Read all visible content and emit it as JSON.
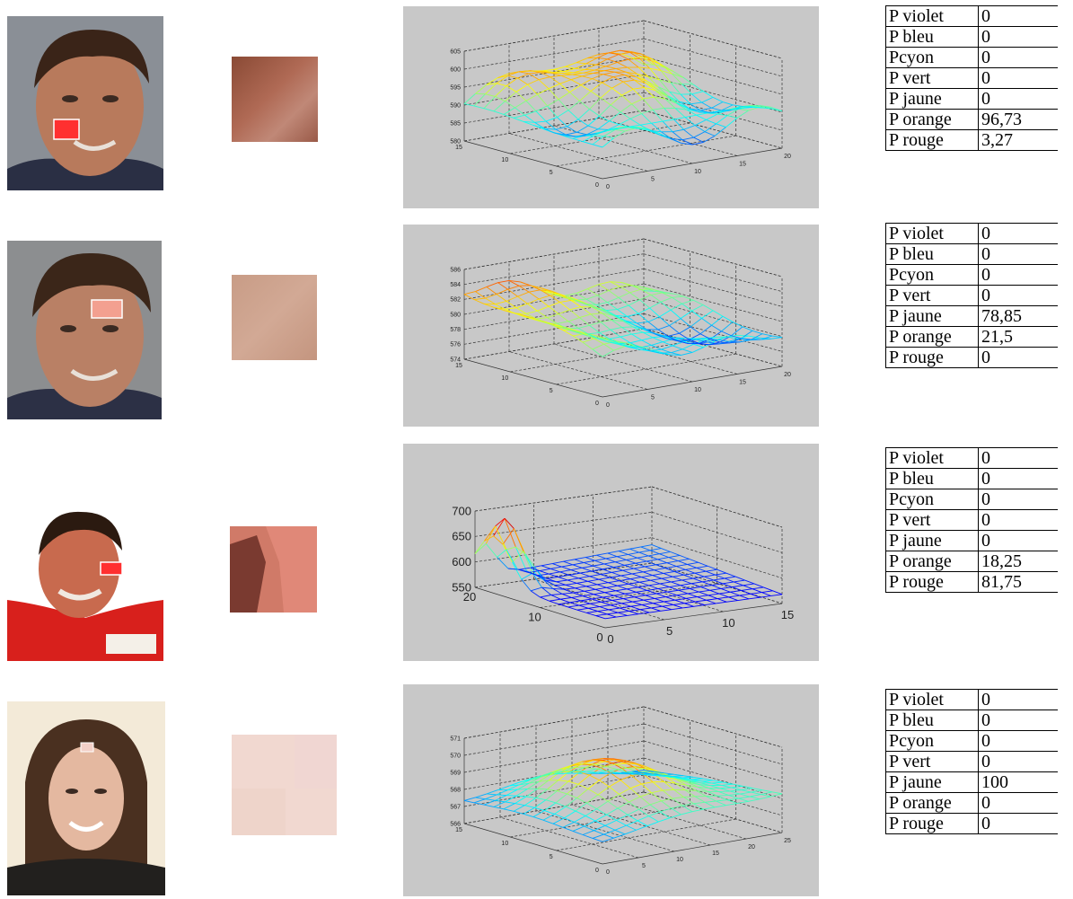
{
  "rows": [
    {
      "table": [
        [
          "P violet",
          "0"
        ],
        [
          "P bleu",
          "0"
        ],
        [
          "Pcyon",
          "0"
        ],
        [
          "P vert",
          "0"
        ],
        [
          "P jaune",
          "0"
        ],
        [
          "P orange",
          "96,73"
        ],
        [
          "P rouge",
          "3,27"
        ]
      ],
      "chart_data": {
        "type": "surface",
        "z_ticks": [
          "605",
          "600",
          "595",
          "590",
          "585",
          "580"
        ],
        "y_ticks": [
          "15",
          "10",
          "5",
          "0"
        ],
        "x_ticks": [
          "0",
          "5",
          "10",
          "15",
          "20"
        ],
        "zlim": [
          580,
          605
        ],
        "ylim": [
          0,
          15
        ],
        "xlim": [
          0,
          20
        ],
        "grid": true
      }
    },
    {
      "table": [
        [
          "P violet",
          "0"
        ],
        [
          "P bleu",
          "0"
        ],
        [
          "Pcyon",
          "0"
        ],
        [
          "P vert",
          "0"
        ],
        [
          "P jaune",
          "78,85"
        ],
        [
          "P orange",
          "21,5"
        ],
        [
          "P rouge",
          "0"
        ]
      ],
      "chart_data": {
        "type": "surface",
        "z_ticks": [
          "586",
          "584",
          "582",
          "580",
          "578",
          "576",
          "574"
        ],
        "y_ticks": [
          "15",
          "10",
          "5",
          "0"
        ],
        "x_ticks": [
          "0",
          "5",
          "10",
          "15",
          "20"
        ],
        "zlim": [
          574,
          586
        ],
        "ylim": [
          0,
          15
        ],
        "xlim": [
          0,
          20
        ],
        "grid": true
      }
    },
    {
      "table": [
        [
          "P violet",
          "0"
        ],
        [
          "P bleu",
          "0"
        ],
        [
          "Pcyon",
          "0"
        ],
        [
          "P vert",
          "0"
        ],
        [
          "P jaune",
          "0"
        ],
        [
          "P orange",
          "18,25"
        ],
        [
          "P rouge",
          "81,75"
        ]
      ],
      "chart_data": {
        "type": "surface",
        "z_ticks": [
          "700",
          "650",
          "600",
          "550"
        ],
        "y_ticks": [
          "20",
          "10",
          "0"
        ],
        "x_ticks": [
          "0",
          "5",
          "10",
          "15"
        ],
        "zlim": [
          550,
          700
        ],
        "ylim": [
          0,
          20
        ],
        "xlim": [
          0,
          15
        ],
        "grid": true
      }
    },
    {
      "table": [
        [
          "P violet",
          "0"
        ],
        [
          "P bleu",
          "0"
        ],
        [
          "Pcyon",
          "0"
        ],
        [
          "P vert",
          "0"
        ],
        [
          "P jaune",
          "100"
        ],
        [
          "P orange",
          "0"
        ],
        [
          "P rouge",
          "0"
        ]
      ],
      "chart_data": {
        "type": "surface",
        "z_ticks": [
          "571",
          "570",
          "569",
          "568",
          "567",
          "566"
        ],
        "y_ticks": [
          "15",
          "10",
          "5",
          "0"
        ],
        "x_ticks": [
          "0",
          "5",
          "10",
          "15",
          "20",
          "25"
        ],
        "zlim": [
          566,
          571
        ],
        "ylim": [
          0,
          15
        ],
        "xlim": [
          0,
          25
        ],
        "grid": true
      }
    }
  ]
}
